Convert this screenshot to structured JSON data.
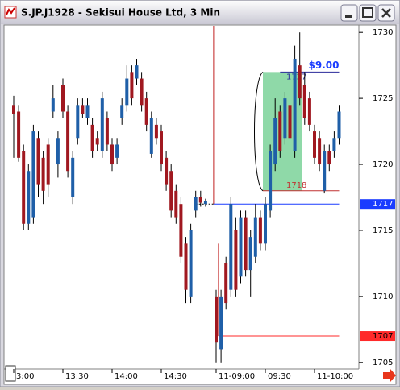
{
  "window": {
    "title": "S.JP.J1928 - Sekisui House Ltd, 3 Min"
  },
  "chart_data": {
    "type": "candlestick",
    "categories": [
      "3:00",
      null,
      null,
      null,
      null,
      null,
      null,
      null,
      null,
      null,
      "13:30",
      null,
      null,
      null,
      null,
      null,
      null,
      null,
      null,
      null,
      "14:00",
      null,
      null,
      null,
      null,
      null,
      null,
      null,
      null,
      null,
      "14:30",
      null,
      null,
      null,
      null,
      null,
      null,
      null,
      null,
      null,
      "11-09:00",
      null,
      null,
      null,
      null,
      null,
      null,
      null,
      null,
      null,
      "09:30",
      null,
      null,
      null,
      null,
      null,
      null,
      null,
      null,
      null,
      "11-10:00",
      null,
      null,
      null,
      null,
      null
    ],
    "open": [
      1724.5,
      1724,
      1721,
      1715.5,
      1716,
      1722,
      1720.5,
      1721.5,
      1724,
      1720,
      1726,
      1724,
      1717.5,
      1722,
      1724.5,
      1723.5,
      1723,
      1722,
      1721,
      1723.5,
      1721.5,
      1720.5,
      1723.5,
      1724.5,
      1727,
      1726.5,
      1726.5,
      1725,
      1720.8,
      1723,
      1722.5,
      1720.5,
      1719.5,
      1718,
      1717,
      1714,
      1710,
      1716.5,
      1717.5,
      1717,
      1710,
      1706,
      1712.5,
      1710.5,
      1715,
      1711.5,
      1716,
      1712,
      1713,
      1716,
      1714,
      1716.5,
      1720,
      1724,
      1722,
      1724.5,
      1721,
      1727.5,
      1726,
      1725,
      1722.5,
      1722,
      1718,
      1721,
      1721,
      1722
    ],
    "high": [
      1725.2,
      1724.5,
      1721.5,
      1720,
      1723,
      1722.5,
      1721,
      1722,
      1726,
      1722.5,
      1726.5,
      1724.5,
      1721,
      1725,
      1725,
      1725,
      1723.5,
      1722.5,
      1725.5,
      1724,
      1722,
      1722,
      1725,
      1727.5,
      1727.5,
      1728,
      1727,
      1725.5,
      1724,
      1723.5,
      1723,
      1721,
      1720,
      1718.5,
      1717.5,
      1714.5,
      1715.5,
      1718,
      1718,
      1717.4,
      1710.5,
      1710.5,
      1713,
      1717.5,
      1716,
      1716.5,
      1716.5,
      1715,
      1717,
      1716.5,
      1717.5,
      1721.5,
      1725,
      1724.5,
      1725.5,
      1725,
      1729,
      1730,
      1727,
      1725.5,
      1723,
      1722.5,
      1721.5,
      1721.5,
      1722.5,
      1724.5
    ],
    "low": [
      1720.5,
      1720.2,
      1715,
      1715,
      1715.5,
      1717.5,
      1717,
      1717.5,
      1723.5,
      1719,
      1723.5,
      1719,
      1717,
      1721.5,
      1723.5,
      1723,
      1720.5,
      1721,
      1720.5,
      1721,
      1719.5,
      1720,
      1723,
      1724,
      1724.5,
      1726,
      1724,
      1722.5,
      1720.5,
      1721.5,
      1719.5,
      1718,
      1716,
      1715.5,
      1712.5,
      1709.5,
      1709.5,
      1716,
      1716.8,
      1716.8,
      1705,
      1705,
      1709,
      1710,
      1710,
      1711,
      1711.5,
      1710,
      1712.5,
      1713.5,
      1713.5,
      1716,
      1719.5,
      1720.5,
      1721.5,
      1721.5,
      1720.5,
      1724.5,
      1723,
      1722.5,
      1720,
      1719.5,
      1717.8,
      1719.5,
      1720.5,
      1721.5
    ],
    "close": [
      1723.8,
      1720.5,
      1715.5,
      1719.5,
      1722.5,
      1718.5,
      1718,
      1718.5,
      1725,
      1722,
      1724,
      1719.5,
      1720.5,
      1724.5,
      1723.8,
      1724.5,
      1721,
      1721.5,
      1725,
      1721.5,
      1720,
      1721.5,
      1724.5,
      1726.5,
      1725,
      1727.5,
      1724.5,
      1723,
      1723.5,
      1722,
      1720,
      1718.5,
      1716.5,
      1716,
      1713,
      1710.5,
      1715,
      1717.5,
      1717.1,
      1717.2,
      1706.5,
      1710,
      1709.5,
      1717,
      1710.5,
      1716,
      1712,
      1714.5,
      1716,
      1714,
      1717,
      1721,
      1723.5,
      1721,
      1725,
      1722,
      1728,
      1725,
      1723.5,
      1723,
      1720.5,
      1720,
      1721,
      1720,
      1722,
      1724
    ],
    "up_color": "#1f5fa8",
    "down_color": "#a01820",
    "ylim": [
      1704.5,
      1730.5
    ],
    "yticks": [
      1705,
      1710,
      1715,
      1720,
      1725,
      1730
    ],
    "levels": [
      {
        "value": 1727,
        "color": "#2a2a9a",
        "style": "labelled"
      },
      {
        "value": 1718,
        "color": "#c03030",
        "style": "labelled"
      },
      {
        "value": 1717,
        "color": "#1a3cff",
        "style": "tag"
      },
      {
        "value": 1707,
        "color": "#ff2a2a",
        "style": "tag"
      }
    ],
    "highlight": {
      "start": 50,
      "end": 57,
      "color": "#8fd9a8",
      "label": "$9.00"
    }
  }
}
